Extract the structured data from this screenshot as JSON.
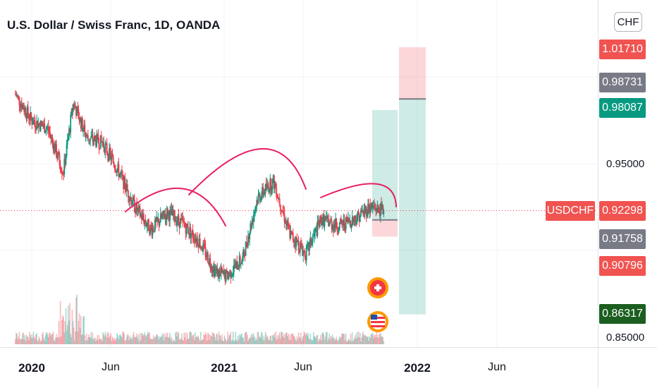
{
  "chart_data": {
    "type": "candlestick",
    "title": "U.S. Dollar / Swiss Franc, 1D, OANDA",
    "symbol": "USDCHF",
    "currency": "CHF",
    "x_labels": [
      "2020",
      "Jun",
      "2021",
      "Jun",
      "2022",
      "Jun"
    ],
    "x_label_bold": [
      true,
      false,
      true,
      false,
      true,
      false
    ],
    "y_ticks": [
      "0.95000",
      "0.85000"
    ],
    "price_tags": [
      {
        "label": "1.01710",
        "color": "#f05350"
      },
      {
        "label": "0.98731",
        "color": "#787b86"
      },
      {
        "label": "0.98087",
        "color": "#089981"
      },
      {
        "label": "0.92298",
        "color": "#f05350"
      },
      {
        "label": "0.91758",
        "color": "#787b86"
      },
      {
        "label": "0.90796",
        "color": "#f05350"
      },
      {
        "label": "0.86317",
        "color": "#1b5e20"
      }
    ],
    "last_price": 0.92298,
    "close_series_approx": {
      "dates": [
        "2019-12-01",
        "2020-01-01",
        "2020-02-01",
        "2020-03-01",
        "2020-03-20",
        "2020-04-15",
        "2020-05-15",
        "2020-06-15",
        "2020-07-15",
        "2020-08-15",
        "2020-09-15",
        "2020-10-15",
        "2020-11-15",
        "2020-12-15",
        "2021-01-05",
        "2021-02-05",
        "2021-03-05",
        "2021-04-05",
        "2021-05-05",
        "2021-06-05",
        "2021-07-05",
        "2021-08-05",
        "2021-09-05",
        "2021-10-05",
        "2021-11-01"
      ],
      "values": [
        0.99,
        0.975,
        0.97,
        0.945,
        0.985,
        0.965,
        0.962,
        0.945,
        0.925,
        0.912,
        0.922,
        0.915,
        0.905,
        0.888,
        0.885,
        0.895,
        0.93,
        0.94,
        0.91,
        0.898,
        0.918,
        0.914,
        0.918,
        0.925,
        0.923
      ]
    },
    "positions": [
      {
        "type": "long",
        "entry": 0.91758,
        "target": 0.98087,
        "stop": 0.90796
      },
      {
        "type": "short",
        "entry": 0.98731,
        "target": 0.86317,
        "stop": 1.0171
      }
    ],
    "annotations": [
      "head-and-shoulders arcs",
      "CHF event marker",
      "USD event marker"
    ],
    "colors": {
      "up": "#089981",
      "down": "#f23645",
      "last_line": "#f23645",
      "arc": "#e91e63"
    }
  }
}
